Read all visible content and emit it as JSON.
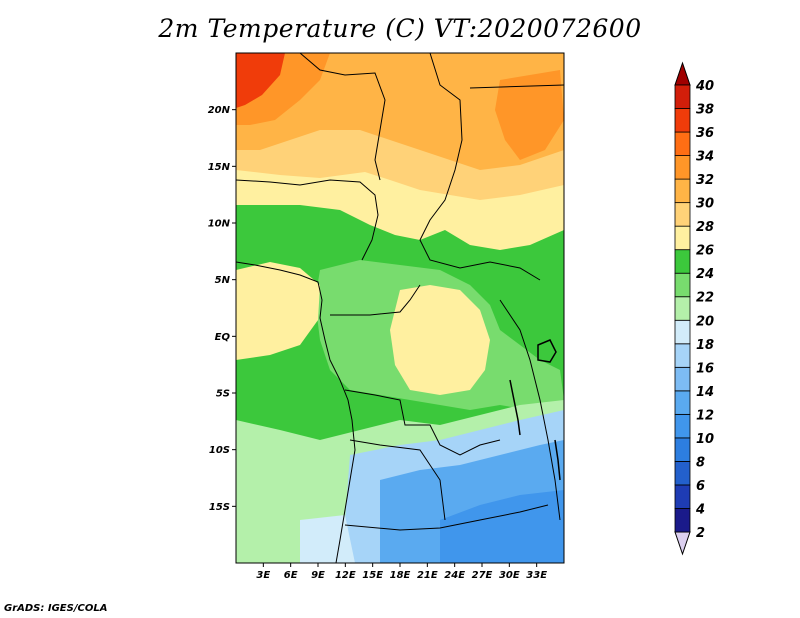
{
  "title": "2m Temperature (C) VT:2020072600",
  "credit": "GrADS: IGES/COLA",
  "map": {
    "lon_range": [
      0,
      36
    ],
    "lat_range": [
      -20,
      25
    ],
    "lat_ticks": [
      {
        "value": 20,
        "label": "20N"
      },
      {
        "value": 15,
        "label": "15N"
      },
      {
        "value": 10,
        "label": "10N"
      },
      {
        "value": 5,
        "label": "5N"
      },
      {
        "value": 0,
        "label": "EQ"
      },
      {
        "value": -5,
        "label": "5S"
      },
      {
        "value": -10,
        "label": "10S"
      },
      {
        "value": -15,
        "label": "15S"
      }
    ],
    "lon_ticks": [
      {
        "value": 3,
        "label": "3E"
      },
      {
        "value": 6,
        "label": "6E"
      },
      {
        "value": 9,
        "label": "9E"
      },
      {
        "value": 12,
        "label": "12E"
      },
      {
        "value": 15,
        "label": "15E"
      },
      {
        "value": 18,
        "label": "18E"
      },
      {
        "value": 21,
        "label": "21E"
      },
      {
        "value": 24,
        "label": "24E"
      },
      {
        "value": 27,
        "label": "27E"
      },
      {
        "value": 30,
        "label": "30E"
      },
      {
        "value": 33,
        "label": "33E"
      }
    ]
  },
  "colorbar": {
    "levels": [
      {
        "value": 2,
        "label": "2",
        "color": "#1a1a8a"
      },
      {
        "value": 4,
        "label": "4",
        "color": "#1e3cb4"
      },
      {
        "value": 6,
        "label": "6",
        "color": "#2360cc"
      },
      {
        "value": 8,
        "label": "8",
        "color": "#2d7ee0"
      },
      {
        "value": 10,
        "label": "10",
        "color": "#4096ec"
      },
      {
        "value": 12,
        "label": "12",
        "color": "#5aaaf0"
      },
      {
        "value": 14,
        "label": "14",
        "color": "#7dbcf4"
      },
      {
        "value": 16,
        "label": "16",
        "color": "#a6d4f8"
      },
      {
        "value": 18,
        "label": "18",
        "color": "#d2ecfa"
      },
      {
        "value": 20,
        "label": "20",
        "color": "#b4f0aa"
      },
      {
        "value": 22,
        "label": "22",
        "color": "#78dc6e"
      },
      {
        "value": 24,
        "label": "24",
        "color": "#3cc83c"
      },
      {
        "value": 26,
        "label": "26",
        "color": "#fff0a0"
      },
      {
        "value": 28,
        "label": "28",
        "color": "#ffd278"
      },
      {
        "value": 30,
        "label": "30",
        "color": "#ffb446"
      },
      {
        "value": 32,
        "label": "32",
        "color": "#ff9628"
      },
      {
        "value": 34,
        "label": "34",
        "color": "#ff6e14"
      },
      {
        "value": 36,
        "label": "36",
        "color": "#f03c0a"
      },
      {
        "value": 38,
        "label": "38",
        "color": "#d21e0a"
      },
      {
        "value": 40,
        "label": "40",
        "color": "#a00000"
      }
    ],
    "overflow_color": "#a00000",
    "underflow_color": "#dcd0f0"
  }
}
